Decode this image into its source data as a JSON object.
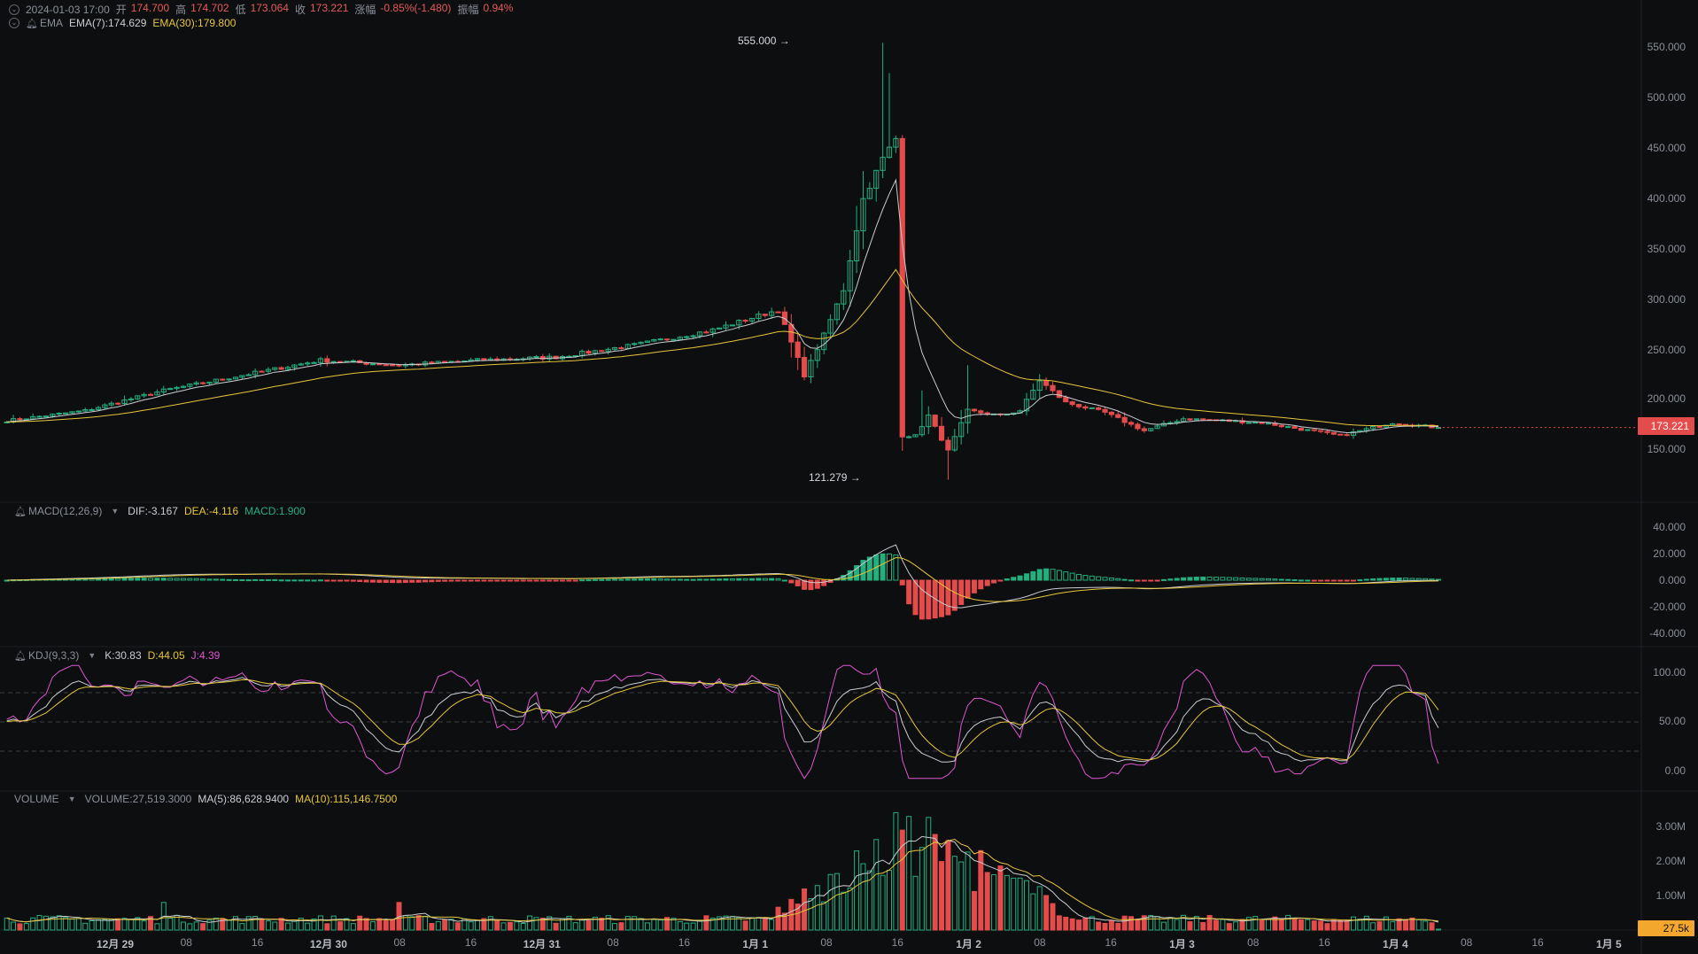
{
  "ohlc_legend": {
    "time": "2024-01-03 17:00",
    "open_label": "开",
    "open": "174.700",
    "high_label": "高",
    "high": "174.702",
    "low_label": "低",
    "low": "173.064",
    "close_label": "收",
    "close": "173.221",
    "change_label": "涨幅",
    "change": "-0.85%(-1.480)",
    "amplitude_label": "振幅",
    "amplitude": "0.94%"
  },
  "ema_legend": {
    "name": "EMA",
    "ema7": "EMA(7):174.629",
    "ema30": "EMA(30):179.800"
  },
  "macd_legend": {
    "name": "MACD(12,26,9)",
    "dif": "DIF:-3.167",
    "dea": "DEA:-4.116",
    "macd": "MACD:1.900"
  },
  "kdj_legend": {
    "name": "KDJ(9,3,3)",
    "k": "K:30.83",
    "d": "D:44.05",
    "j": "J:4.39"
  },
  "volume_legend": {
    "name": "VOLUME",
    "volume": "VOLUME:27,519.3000",
    "ma5": "MA(5):86,628.9400",
    "ma10": "MA(10):115,146.7500"
  },
  "price_axis": [
    "550.000",
    "500.000",
    "450.000",
    "400.000",
    "350.000",
    "300.000",
    "250.000",
    "200.000",
    "150.000"
  ],
  "macd_axis": [
    "40.000",
    "20.000",
    "0.000",
    "-20.000",
    "-40.000"
  ],
  "kdj_axis": [
    "100.00",
    "50.00",
    "0.00"
  ],
  "volume_axis": [
    "3.00M",
    "2.00M",
    "1.00M"
  ],
  "current_price_tag": "173.221",
  "current_volume_tag": "27.5k",
  "high_annotation": "555.000",
  "low_annotation": "121.279",
  "time_axis": [
    {
      "label": "12月 29",
      "day": true
    },
    {
      "label": "08",
      "day": false
    },
    {
      "label": "16",
      "day": false
    },
    {
      "label": "12月 30",
      "day": true
    },
    {
      "label": "08",
      "day": false
    },
    {
      "label": "16",
      "day": false
    },
    {
      "label": "12月 31",
      "day": true
    },
    {
      "label": "08",
      "day": false
    },
    {
      "label": "16",
      "day": false
    },
    {
      "label": "1月 1",
      "day": true
    },
    {
      "label": "08",
      "day": false
    },
    {
      "label": "16",
      "day": false
    },
    {
      "label": "1月 2",
      "day": true
    },
    {
      "label": "08",
      "day": false
    },
    {
      "label": "16",
      "day": false
    },
    {
      "label": "1月 3",
      "day": true
    },
    {
      "label": "08",
      "day": false
    },
    {
      "label": "16",
      "day": false
    },
    {
      "label": "1月 4",
      "day": true
    },
    {
      "label": "08",
      "day": false
    },
    {
      "label": "16",
      "day": false
    },
    {
      "label": "1月 5",
      "day": true
    }
  ],
  "colors": {
    "up": "#23b07e",
    "down": "#e44b4b",
    "ema7": "#c9ccd2",
    "ema30": "#e6c63a",
    "j_line": "#e055d3",
    "grid": "#1f2126",
    "background": "#0d0e10"
  },
  "chart_data": {
    "type": "candlestick",
    "interval": "1h",
    "price_range": [
      100,
      570
    ],
    "anchors": [
      {
        "t": 0,
        "c": 180
      },
      {
        "t": 12,
        "c": 190
      },
      {
        "t": 24,
        "c": 210
      },
      {
        "t": 36,
        "c": 225
      },
      {
        "t": 48,
        "c": 240
      },
      {
        "t": 60,
        "c": 235
      },
      {
        "t": 72,
        "c": 240
      },
      {
        "t": 84,
        "c": 243
      },
      {
        "t": 96,
        "c": 255
      },
      {
        "t": 108,
        "c": 270
      },
      {
        "t": 118,
        "c": 290
      },
      {
        "t": 122,
        "c": 225
      },
      {
        "t": 125,
        "c": 265
      },
      {
        "t": 128,
        "c": 310
      },
      {
        "t": 131,
        "c": 400
      },
      {
        "t": 134,
        "c": 440
      },
      {
        "t": 136,
        "c": 460
      },
      {
        "t": 137,
        "c": 165
      },
      {
        "t": 139,
        "c": 165
      },
      {
        "t": 141,
        "c": 185
      },
      {
        "t": 144,
        "c": 150
      },
      {
        "t": 147,
        "c": 190
      },
      {
        "t": 152,
        "c": 185
      },
      {
        "t": 155,
        "c": 190
      },
      {
        "t": 158,
        "c": 220
      },
      {
        "t": 162,
        "c": 198
      },
      {
        "t": 168,
        "c": 188
      },
      {
        "t": 174,
        "c": 170
      },
      {
        "t": 180,
        "c": 182
      },
      {
        "t": 192,
        "c": 178
      },
      {
        "t": 204,
        "c": 165
      },
      {
        "t": 212,
        "c": 178
      },
      {
        "t": 219,
        "c": 173
      }
    ],
    "high_point": {
      "value": 555.0,
      "t": 134
    },
    "low_point": {
      "value": 121.279,
      "t": 144
    },
    "macd_range": [
      -50,
      50
    ],
    "kdj_range": [
      -10,
      110
    ],
    "volume_range": [
      0,
      3600000
    ]
  }
}
